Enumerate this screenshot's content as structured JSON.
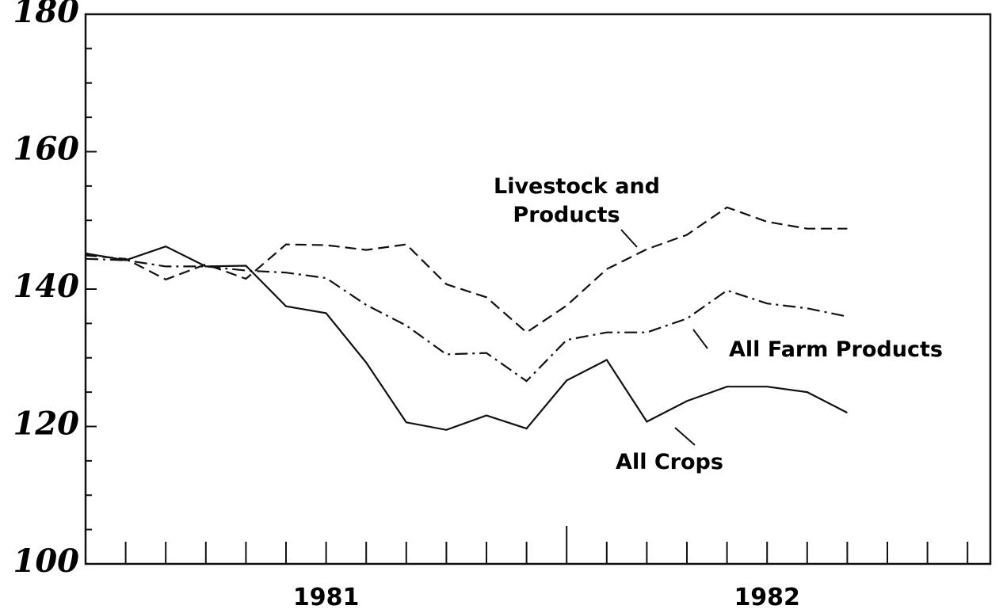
{
  "chart_data": {
    "type": "line",
    "categories": [
      null,
      null,
      null,
      null,
      null,
      null,
      "1981",
      null,
      null,
      null,
      null,
      null,
      null,
      null,
      null,
      null,
      null,
      "1982",
      null,
      null,
      null,
      null,
      null
    ],
    "series": [
      {
        "name": "All Crops",
        "color": "#111111",
        "style": "solid",
        "values": [
          145.2,
          144.2,
          146.2,
          143.3,
          143.4,
          137.5,
          136.5,
          129.3,
          120.6,
          119.5,
          121.6,
          119.7,
          126.7,
          129.7,
          120.7,
          123.7,
          125.8,
          125.8,
          125,
          122,
          null,
          null,
          null
        ]
      },
      {
        "name": "Livestock and Products",
        "color": "#111111",
        "style": "dashed",
        "values": [
          144.9,
          144.4,
          141.4,
          143.6,
          141.5,
          146.5,
          146.4,
          145.7,
          146.5,
          140.7,
          138.8,
          133.7,
          137.6,
          142.9,
          145.8,
          147.9,
          151.9,
          149.8,
          148.8,
          148.8,
          null,
          null,
          null
        ]
      },
      {
        "name": "All Farm Products",
        "color": "#111111",
        "style": "dashdot",
        "values": [
          144.4,
          144.2,
          143.3,
          143.3,
          142.7,
          142.4,
          141.6,
          137.7,
          134.7,
          130.5,
          130.7,
          126.6,
          132.6,
          133.7,
          133.7,
          135.7,
          139.8,
          137.9,
          137.2,
          136,
          null,
          null,
          null
        ]
      }
    ],
    "annotations": [
      "Livestock and",
      "Products",
      "All Farm Products",
      "All Crops"
    ],
    "ylim": [
      100,
      180
    ],
    "yticks": [
      100,
      120,
      140,
      160,
      180
    ],
    "yticks_minor": [
      105,
      110,
      115,
      125,
      130,
      135,
      145,
      150,
      155,
      165,
      170,
      175
    ],
    "grid": false
  }
}
